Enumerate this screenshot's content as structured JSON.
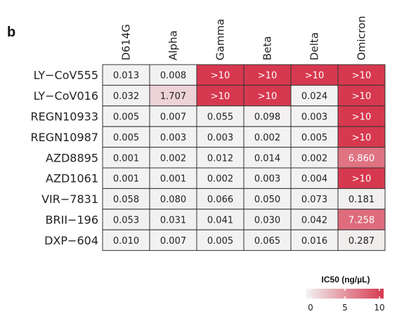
{
  "panel_label": "b",
  "chart_data": {
    "type": "heatmap",
    "columns": [
      "D614G",
      "Alpha",
      "Gamma",
      "Beta",
      "Delta",
      "Omicron"
    ],
    "rows": [
      {
        "name": "LY−CoV555",
        "labels": [
          "0.013",
          "0.008",
          ">10",
          ">10",
          ">10",
          ">10"
        ],
        "values": [
          0.013,
          0.008,
          10,
          10,
          10,
          10
        ]
      },
      {
        "name": "LY−CoV016",
        "labels": [
          "0.032",
          "1.707",
          ">10",
          ">10",
          "0.024",
          ">10"
        ],
        "values": [
          0.032,
          1.707,
          10,
          10,
          0.024,
          10
        ]
      },
      {
        "name": "REGN10933",
        "labels": [
          "0.005",
          "0.007",
          "0.055",
          "0.098",
          "0.003",
          ">10"
        ],
        "values": [
          0.005,
          0.007,
          0.055,
          0.098,
          0.003,
          10
        ]
      },
      {
        "name": "REGN10987",
        "labels": [
          "0.005",
          "0.003",
          "0.003",
          "0.002",
          "0.005",
          ">10"
        ],
        "values": [
          0.005,
          0.003,
          0.003,
          0.002,
          0.005,
          10
        ]
      },
      {
        "name": "AZD8895",
        "labels": [
          "0.001",
          "0.002",
          "0.012",
          "0.014",
          "0.002",
          "6.860"
        ],
        "values": [
          0.001,
          0.002,
          0.012,
          0.014,
          0.002,
          6.86
        ]
      },
      {
        "name": "AZD1061",
        "labels": [
          "0.001",
          "0.001",
          "0.002",
          "0.003",
          "0.004",
          ">10"
        ],
        "values": [
          0.001,
          0.001,
          0.002,
          0.003,
          0.004,
          10
        ]
      },
      {
        "name": "VIR−7831",
        "labels": [
          "0.058",
          "0.080",
          "0.066",
          "0.050",
          "0.073",
          "0.181"
        ],
        "values": [
          0.058,
          0.08,
          0.066,
          0.05,
          0.073,
          0.181
        ]
      },
      {
        "name": "BRII−196",
        "labels": [
          "0.053",
          "0.031",
          "0.041",
          "0.030",
          "0.042",
          "7.258"
        ],
        "values": [
          0.053,
          0.031,
          0.041,
          0.03,
          0.042,
          7.258
        ]
      },
      {
        "name": "DXP−604",
        "labels": [
          "0.010",
          "0.007",
          "0.005",
          "0.065",
          "0.016",
          "0.287"
        ],
        "values": [
          0.01,
          0.007,
          0.005,
          0.065,
          0.016,
          0.287
        ]
      }
    ],
    "legend": {
      "title": "IC50 (ng/µL)",
      "ticks": [
        0,
        5,
        10
      ],
      "tick_labels": [
        "0",
        "5",
        "10"
      ],
      "range": [
        0,
        10
      ],
      "color_low": "#f2f2f2",
      "color_high": "#d6394f",
      "placement": "bottom-right"
    },
    "title": "",
    "xlabel": "",
    "ylabel": ""
  }
}
